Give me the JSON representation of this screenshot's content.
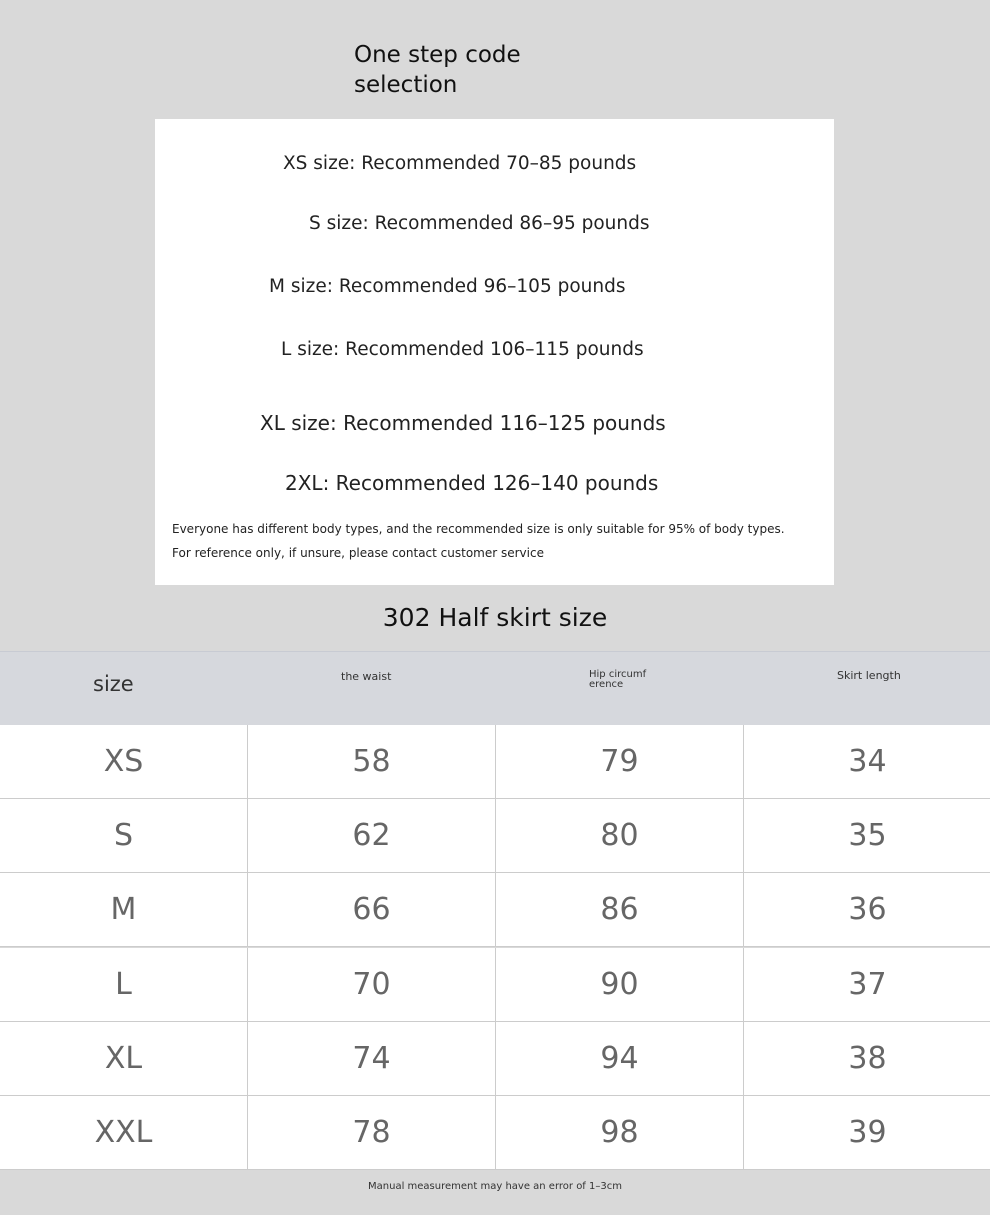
{
  "header": {
    "title": "One step code selection"
  },
  "recommendations": [
    "XS size: Recommended 70–85 pounds",
    "S size: Recommended 86–95 pounds",
    "M size: Recommended 96–105 pounds",
    "L size: Recommended 106–115 pounds",
    "XL size: Recommended 116–125 pounds",
    "2XL: Recommended 126–140 pounds"
  ],
  "note": "Everyone has different body types, and the recommended size is only suitable for 95% of body types. For reference only, if unsure, please contact customer service",
  "table": {
    "title": "302 Half skirt size",
    "columns": [
      "size",
      "the waist",
      "Hip circumference",
      "Skirt length"
    ],
    "rows": [
      [
        "XS",
        58,
        79,
        34
      ],
      [
        "S",
        62,
        80,
        35
      ],
      [
        "M",
        66,
        86,
        36
      ],
      [
        "L",
        70,
        90,
        37
      ],
      [
        "XL",
        74,
        94,
        38
      ],
      [
        "XXL",
        78,
        98,
        39
      ]
    ]
  },
  "footer": "Manual measurement may have an error of 1–3cm"
}
